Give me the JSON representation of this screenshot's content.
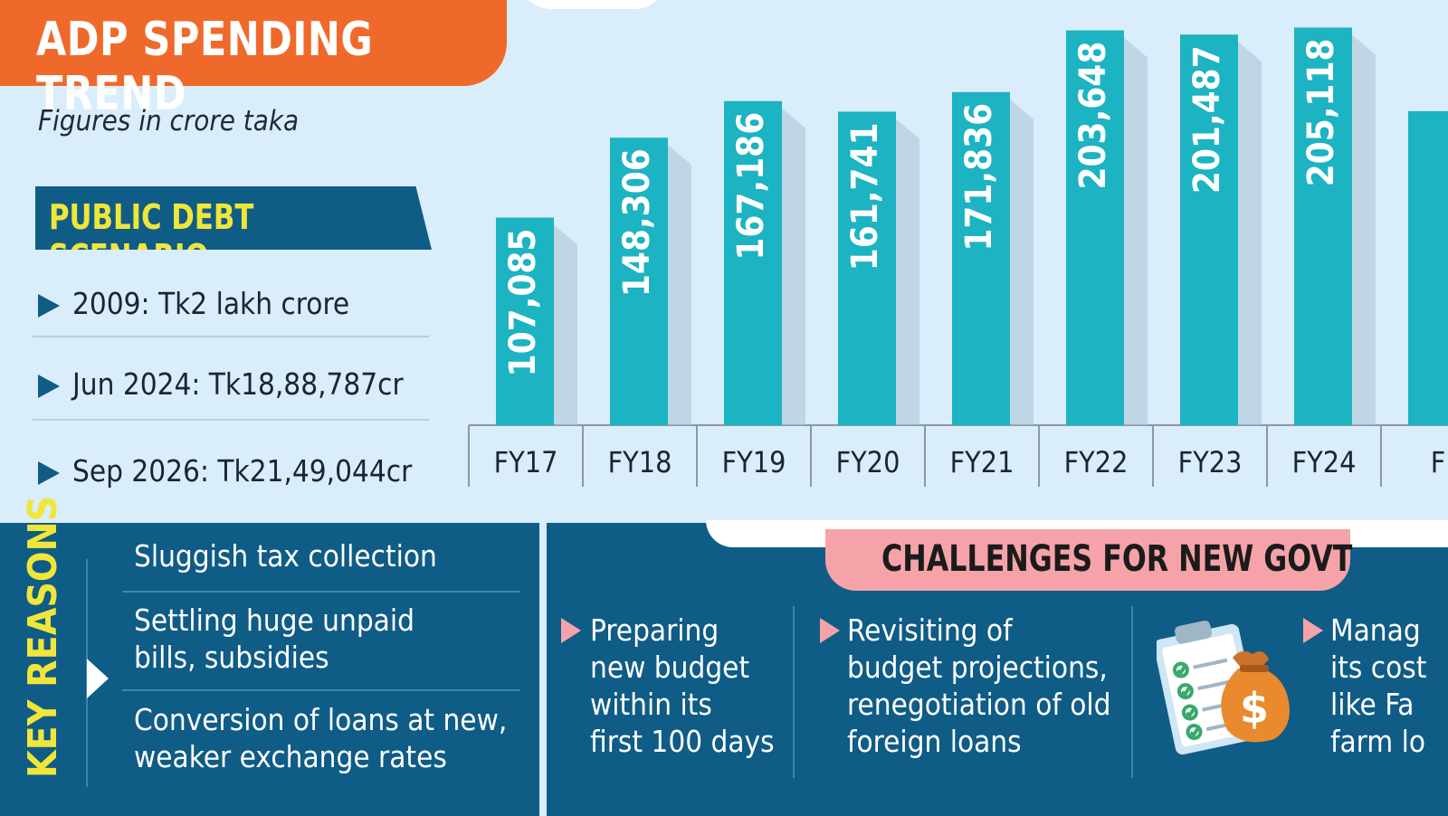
{
  "header": {
    "title": "ADP SPENDING TREND",
    "subtitle": "Figures in crore taka"
  },
  "public_debt": {
    "heading": "PUBLIC DEBT SCENARIO",
    "items": [
      "2009: Tk2 lakh crore",
      "Jun 2024: Tk18,88,787cr",
      "Sep 2026: Tk21,49,044cr"
    ]
  },
  "key_reasons": {
    "label": "KEY REASONS",
    "items": [
      "Sluggish tax collection",
      "Settling huge unpaid\nbills, subsidies",
      "Conversion of loans at new,\nweaker exchange rates"
    ]
  },
  "challenges": {
    "heading": "CHALLENGES FOR NEW GOVT",
    "items": [
      "Preparing\nnew budget\nwithin its\nfirst 100 days",
      "Revisiting of\nbudget projections,\nrenegotiation of old\nforeign loans",
      "Manag\nits cost\nlike Fa\nfarm lo"
    ]
  },
  "chart_data": {
    "type": "bar",
    "title": "ADP SPENDING TREND",
    "subtitle": "Figures in crore taka",
    "categories": [
      "FY17",
      "FY18",
      "FY19",
      "FY20",
      "FY21",
      "FY22",
      "FY23",
      "FY24",
      "F"
    ],
    "values": [
      107085,
      148306,
      167186,
      161741,
      171836,
      203648,
      201487,
      205118,
      null
    ],
    "value_labels": [
      "107,085",
      "148,306",
      "167,186",
      "161,741",
      "171,836",
      "203,648",
      "201,487",
      "205,118",
      ""
    ],
    "partially_visible_value": 162000,
    "ylim": [
      0,
      210000
    ],
    "grid": false,
    "colors": {
      "bar": "#1cb3c2",
      "shadow": "#a9c2d6",
      "axis": "#8b98a6"
    }
  }
}
